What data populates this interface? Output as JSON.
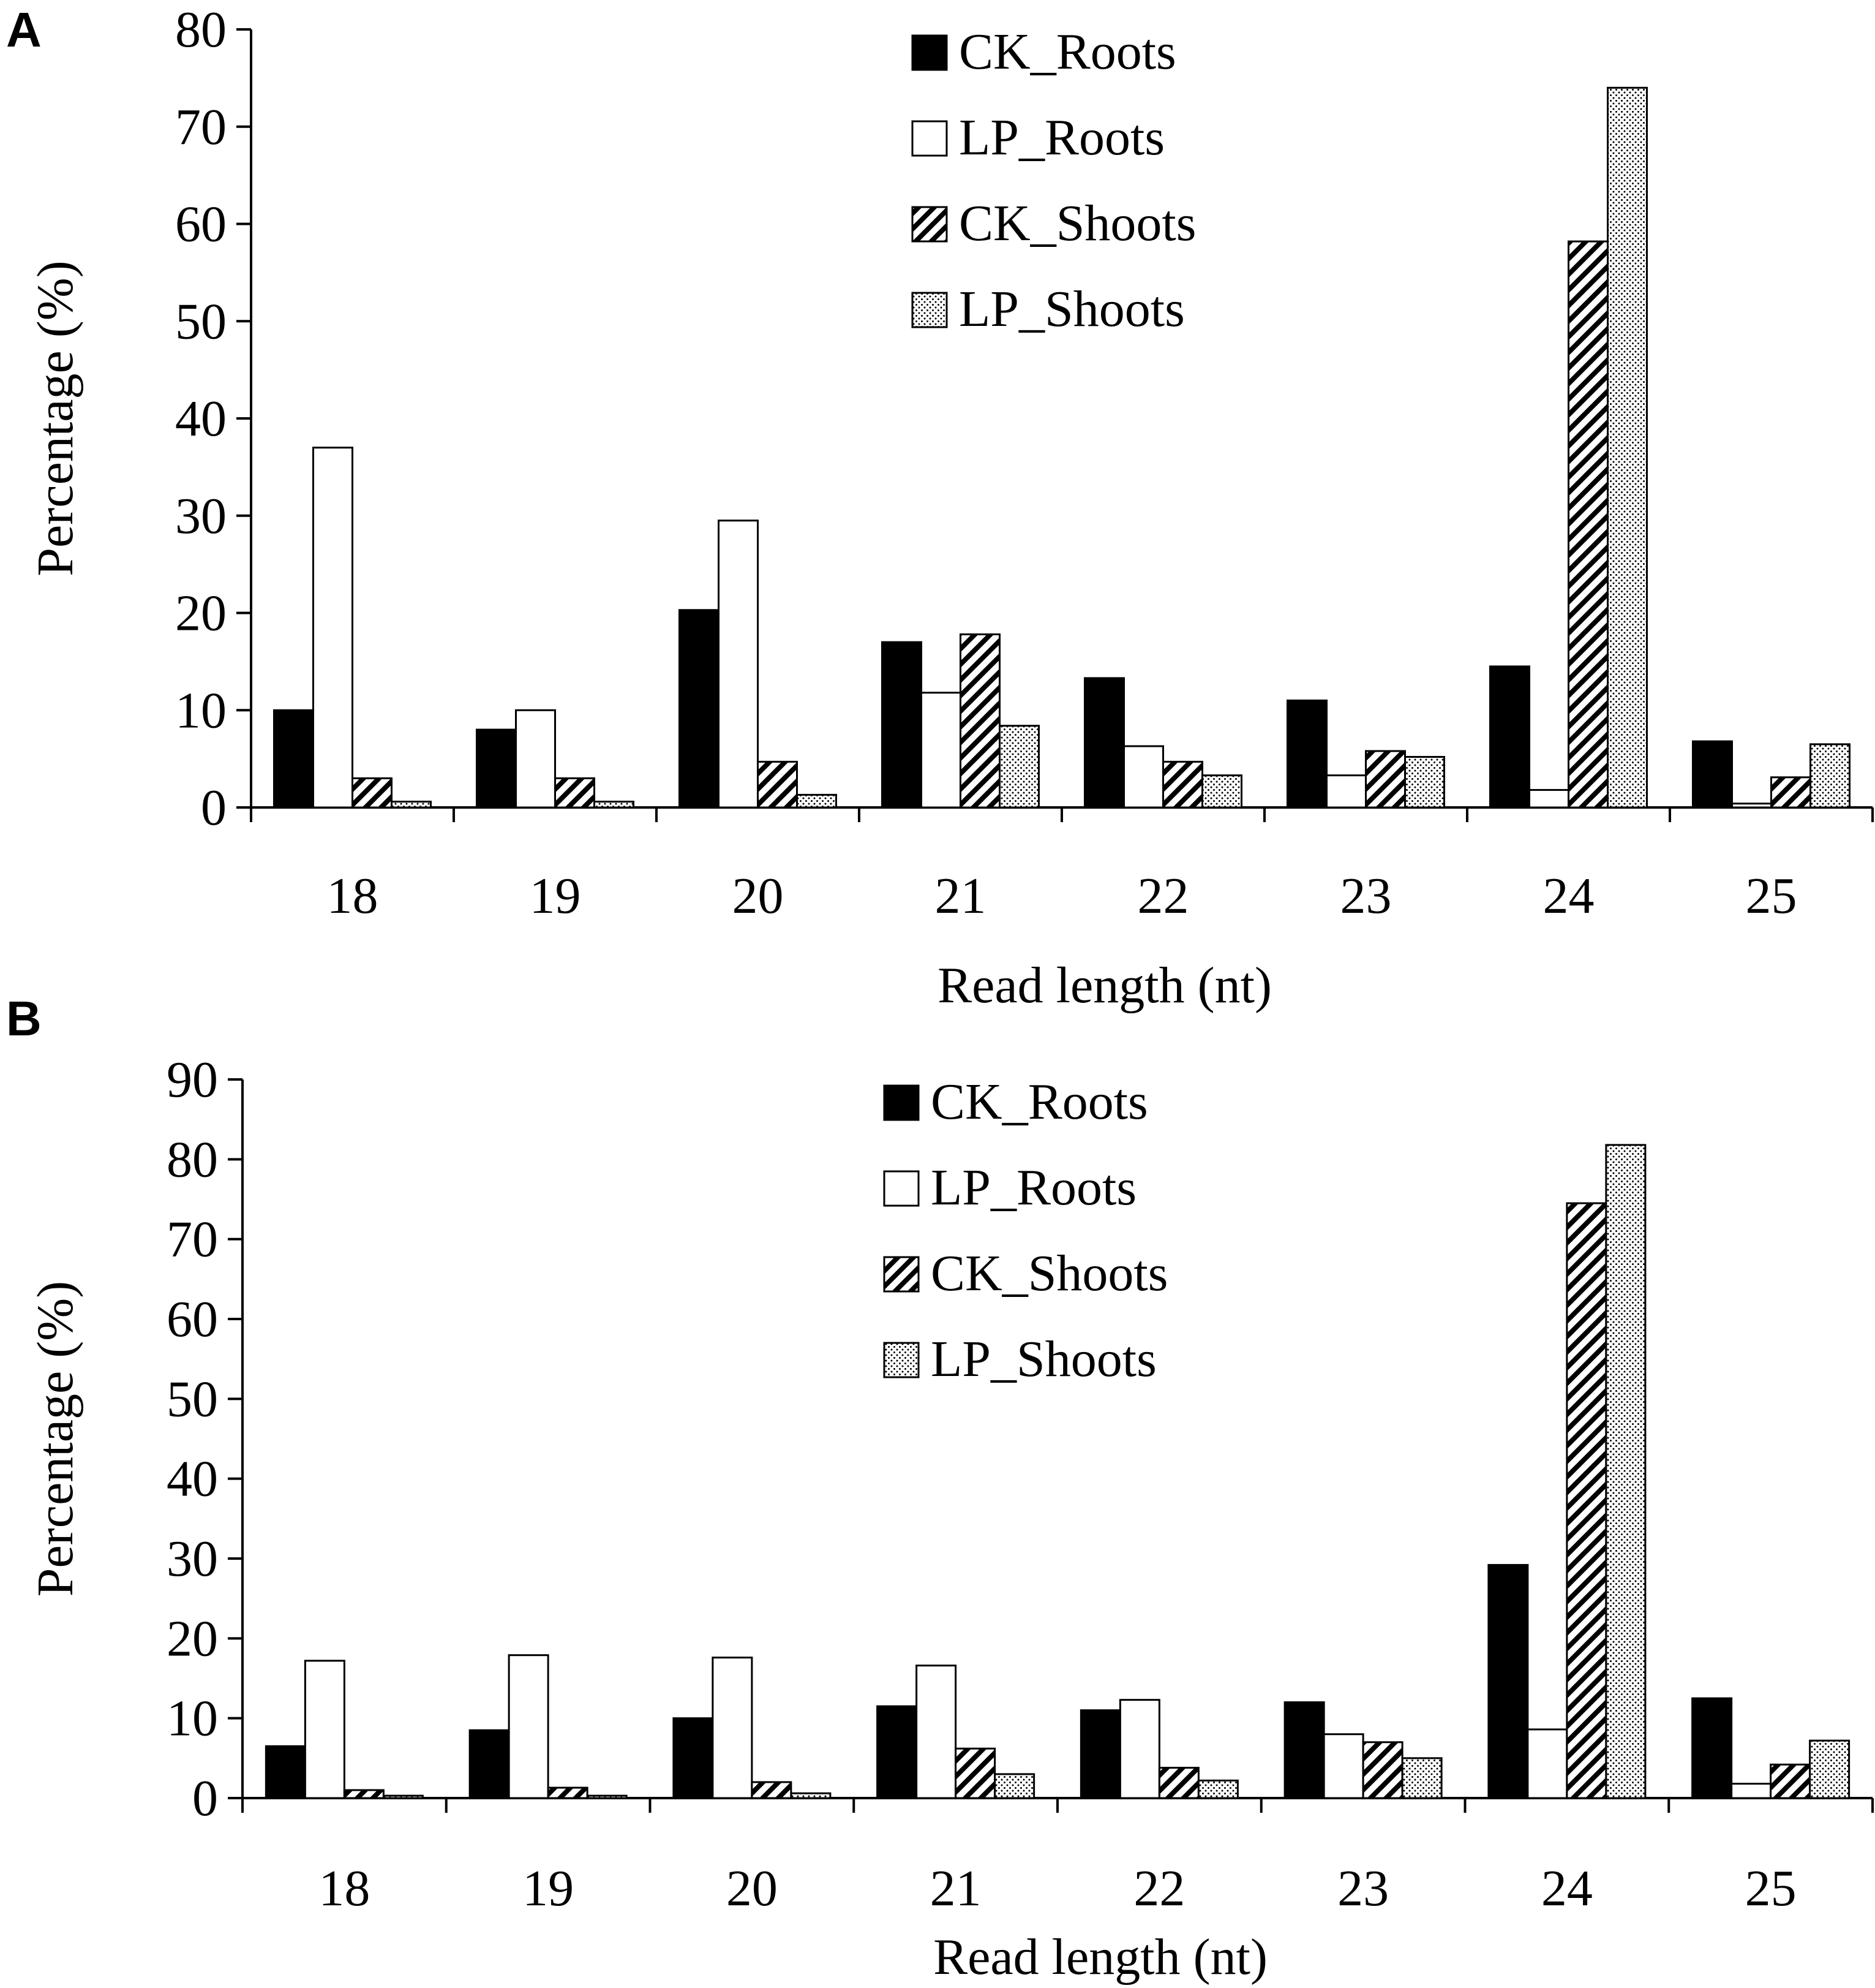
{
  "chart_data": [
    {
      "panel": "A",
      "type": "bar",
      "xlabel": "Read length (nt)",
      "ylabel": "Percentage (%)",
      "ylim": [
        0,
        80
      ],
      "yticks": [
        0,
        10,
        20,
        30,
        40,
        50,
        60,
        70,
        80
      ],
      "categories": [
        "18",
        "19",
        "20",
        "21",
        "22",
        "23",
        "24",
        "25"
      ],
      "legend_position": "top-center",
      "series": [
        {
          "name": "CK_Roots",
          "pattern": "solid",
          "values": [
            10.0,
            8.0,
            20.3,
            17.0,
            13.3,
            11.0,
            14.5,
            6.8
          ]
        },
        {
          "name": "LP_Roots",
          "pattern": "open",
          "values": [
            37.0,
            10.0,
            29.5,
            11.8,
            6.3,
            3.3,
            1.8,
            0.4
          ]
        },
        {
          "name": "CK_Shoots",
          "pattern": "hatch",
          "values": [
            3.0,
            3.0,
            4.7,
            17.8,
            4.7,
            5.8,
            58.2,
            3.1
          ]
        },
        {
          "name": "LP_Shoots",
          "pattern": "dots",
          "values": [
            0.6,
            0.6,
            1.3,
            8.4,
            3.3,
            5.2,
            74.0,
            6.5
          ]
        }
      ]
    },
    {
      "panel": "B",
      "type": "bar",
      "xlabel": "Read length (nt)",
      "ylabel": "Percentage (%)",
      "ylim": [
        0,
        90
      ],
      "yticks": [
        0,
        10,
        20,
        30,
        40,
        50,
        60,
        70,
        80,
        90
      ],
      "categories": [
        "18",
        "19",
        "20",
        "21",
        "22",
        "23",
        "24",
        "25"
      ],
      "legend_position": "top-center",
      "series": [
        {
          "name": "CK_Roots",
          "pattern": "solid",
          "values": [
            6.5,
            8.5,
            10.0,
            11.5,
            11.0,
            12.0,
            29.2,
            12.5
          ]
        },
        {
          "name": "LP_Roots",
          "pattern": "open",
          "values": [
            17.2,
            17.9,
            17.6,
            16.6,
            12.3,
            8.0,
            8.6,
            1.8
          ]
        },
        {
          "name": "CK_Shoots",
          "pattern": "hatch",
          "values": [
            1.0,
            1.3,
            2.0,
            6.2,
            3.8,
            7.0,
            74.5,
            4.2
          ]
        },
        {
          "name": "LP_Shoots",
          "pattern": "dots",
          "values": [
            0.3,
            0.3,
            0.6,
            3.0,
            2.2,
            5.0,
            81.8,
            7.2
          ]
        }
      ]
    }
  ]
}
